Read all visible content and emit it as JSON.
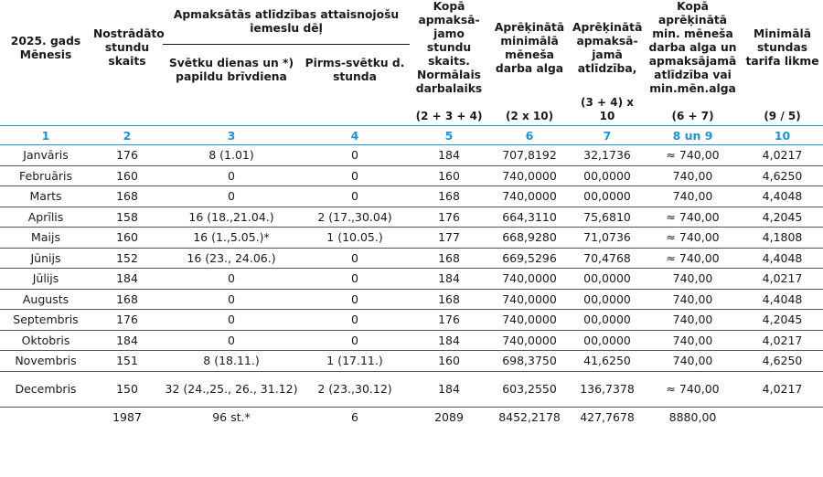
{
  "headers": {
    "month_year": "2025. gads",
    "month": "Mēnesis",
    "planned_hours": "Nostrādāto stundu skaits",
    "paid_absence_group": "Apmaksātās atlīdzības attaisnojošu iemeslu dēļ",
    "holiday_days": "Svētku dienas un *) papildu brīvdiena",
    "preholiday_hour": "Pirms-svētku d. stunda",
    "total_paid_hours": "Kopā apmaksā-jamo stundu skaits. Normālais darbalaiks",
    "calc_min_salary": "Aprēķinātā minimālā mēneša darba alga",
    "calc_paid_compensation": "Aprēķinātā apmaksā-jamā atlīdzība,",
    "total_calc": "Kopā aprēķinātā min. mēneša darba alga un apmaksājamā atlīdzība vai min.mēn.alga",
    "min_hourly_rate": "Minimālā stundas tarifa likme"
  },
  "formulas": [
    "(2 + 3 + 4)",
    "(2 x 10)",
    "(3 + 4) x 10",
    "(6 + 7)",
    "(9 / 5)"
  ],
  "column_numbers": [
    "1",
    "2",
    "3",
    "4",
    "5",
    "6",
    "7",
    "8 un 9",
    "10"
  ],
  "rows": [
    {
      "month": "Janvāris",
      "hours": "176",
      "holidays": "8 (1.01)",
      "preholiday": "0",
      "total": "184",
      "min_salary": "707,8192",
      "compensation": "32,1736",
      "sum": "≈ 740,00",
      "rate": "4,0217"
    },
    {
      "month": "Februāris",
      "hours": "160",
      "holidays": "0",
      "preholiday": "0",
      "total": "160",
      "min_salary": "740,0000",
      "compensation": "00,0000",
      "sum": "740,00",
      "rate": "4,6250"
    },
    {
      "month": "Marts",
      "hours": "168",
      "holidays": "0",
      "preholiday": "0",
      "total": "168",
      "min_salary": "740,0000",
      "compensation": "00,0000",
      "sum": "740,00",
      "rate": "4,4048"
    },
    {
      "month": "Aprīlis",
      "hours": "158",
      "holidays": "16 (18.,21.04.)",
      "preholiday": "2 (17.,30.04)",
      "total": "176",
      "min_salary": "664,3110",
      "compensation": "75,6810",
      "sum": "≈ 740,00",
      "rate": "4,2045"
    },
    {
      "month": "Maijs",
      "hours": "160",
      "holidays": "16 (1.,5.05.)*",
      "preholiday": "1 (10.05.)",
      "total": "177",
      "min_salary": "668,9280",
      "compensation": "71,0736",
      "sum": "≈ 740,00",
      "rate": "4,1808"
    },
    {
      "month": "Jūnijs",
      "hours": "152",
      "holidays": "16 (23., 24.06.)",
      "preholiday": "0",
      "total": "168",
      "min_salary": "669,5296",
      "compensation": "70,4768",
      "sum": "≈ 740,00",
      "rate": "4,4048"
    },
    {
      "month": "Jūlijs",
      "hours": "184",
      "holidays": "0",
      "preholiday": "0",
      "total": "184",
      "min_salary": "740,0000",
      "compensation": "00,0000",
      "sum": "740,00",
      "rate": "4,0217"
    },
    {
      "month": "Augusts",
      "hours": "168",
      "holidays": "0",
      "preholiday": "0",
      "total": "168",
      "min_salary": "740,0000",
      "compensation": "00,0000",
      "sum": "740,00",
      "rate": "4,4048"
    },
    {
      "month": "Septembris",
      "hours": "176",
      "holidays": "0",
      "preholiday": "0",
      "total": "176",
      "min_salary": "740,0000",
      "compensation": "00,0000",
      "sum": "740,00",
      "rate": "4,2045"
    },
    {
      "month": "Oktobris",
      "hours": "184",
      "holidays": "0",
      "preholiday": "0",
      "total": "184",
      "min_salary": "740,0000",
      "compensation": "00,0000",
      "sum": "740,00",
      "rate": "4,0217"
    },
    {
      "month": "Novembris",
      "hours": "151",
      "holidays": "8 (18.11.)",
      "preholiday": "1 (17.11.)",
      "total": "160",
      "min_salary": "698,3750",
      "compensation": "41,6250",
      "sum": "740,00",
      "rate": "4,6250"
    },
    {
      "month": "Decembris",
      "hours": "150",
      "holidays": "32 (24.,25., 26., 31.12)",
      "preholiday": "2 (23.,30.12)",
      "total": "184",
      "min_salary": "603,2550",
      "compensation": "136,7378",
      "sum": "≈ 740,00",
      "rate": "4,0217"
    }
  ],
  "totals": {
    "month": "",
    "hours": "1987",
    "holidays": "96 st.*",
    "preholiday": "6",
    "total": "2089",
    "min_salary": "8452,2178",
    "compensation": "427,7678",
    "sum": "8880,00",
    "rate": ""
  }
}
